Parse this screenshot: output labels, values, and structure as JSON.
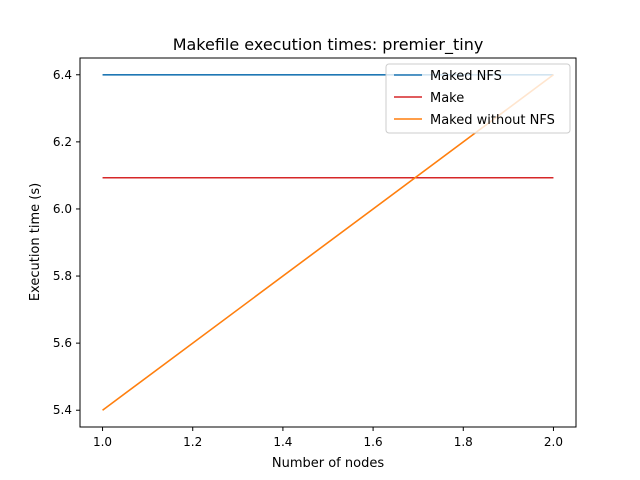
{
  "chart_data": {
    "type": "line",
    "title": "Makefile execution times: premier_tiny",
    "xlabel": "Number of nodes",
    "ylabel": "Execution time (s)",
    "xlim": [
      0.95,
      2.05
    ],
    "ylim": [
      5.35,
      6.45
    ],
    "xticks": [
      1.0,
      1.2,
      1.4,
      1.6,
      1.8,
      2.0
    ],
    "xtick_labels": [
      "1.0",
      "1.2",
      "1.4",
      "1.6",
      "1.8",
      "2.0"
    ],
    "yticks": [
      5.4,
      5.6,
      5.8,
      6.0,
      6.2,
      6.4
    ],
    "ytick_labels": [
      "5.4",
      "5.6",
      "5.8",
      "6.0",
      "6.2",
      "6.4"
    ],
    "grid": false,
    "legend_position": "top-right",
    "series": [
      {
        "name": "Maked NFS",
        "color": "#1f77b4",
        "x": [
          1.0,
          2.0
        ],
        "y": [
          6.4,
          6.4
        ]
      },
      {
        "name": "Make",
        "color": "#d62728",
        "x": [
          1.0,
          2.0
        ],
        "y": [
          6.093,
          6.093
        ]
      },
      {
        "name": "Maked without NFS",
        "color": "#ff7f0e",
        "x": [
          1.0,
          2.0
        ],
        "y": [
          5.4,
          6.4
        ]
      }
    ]
  }
}
